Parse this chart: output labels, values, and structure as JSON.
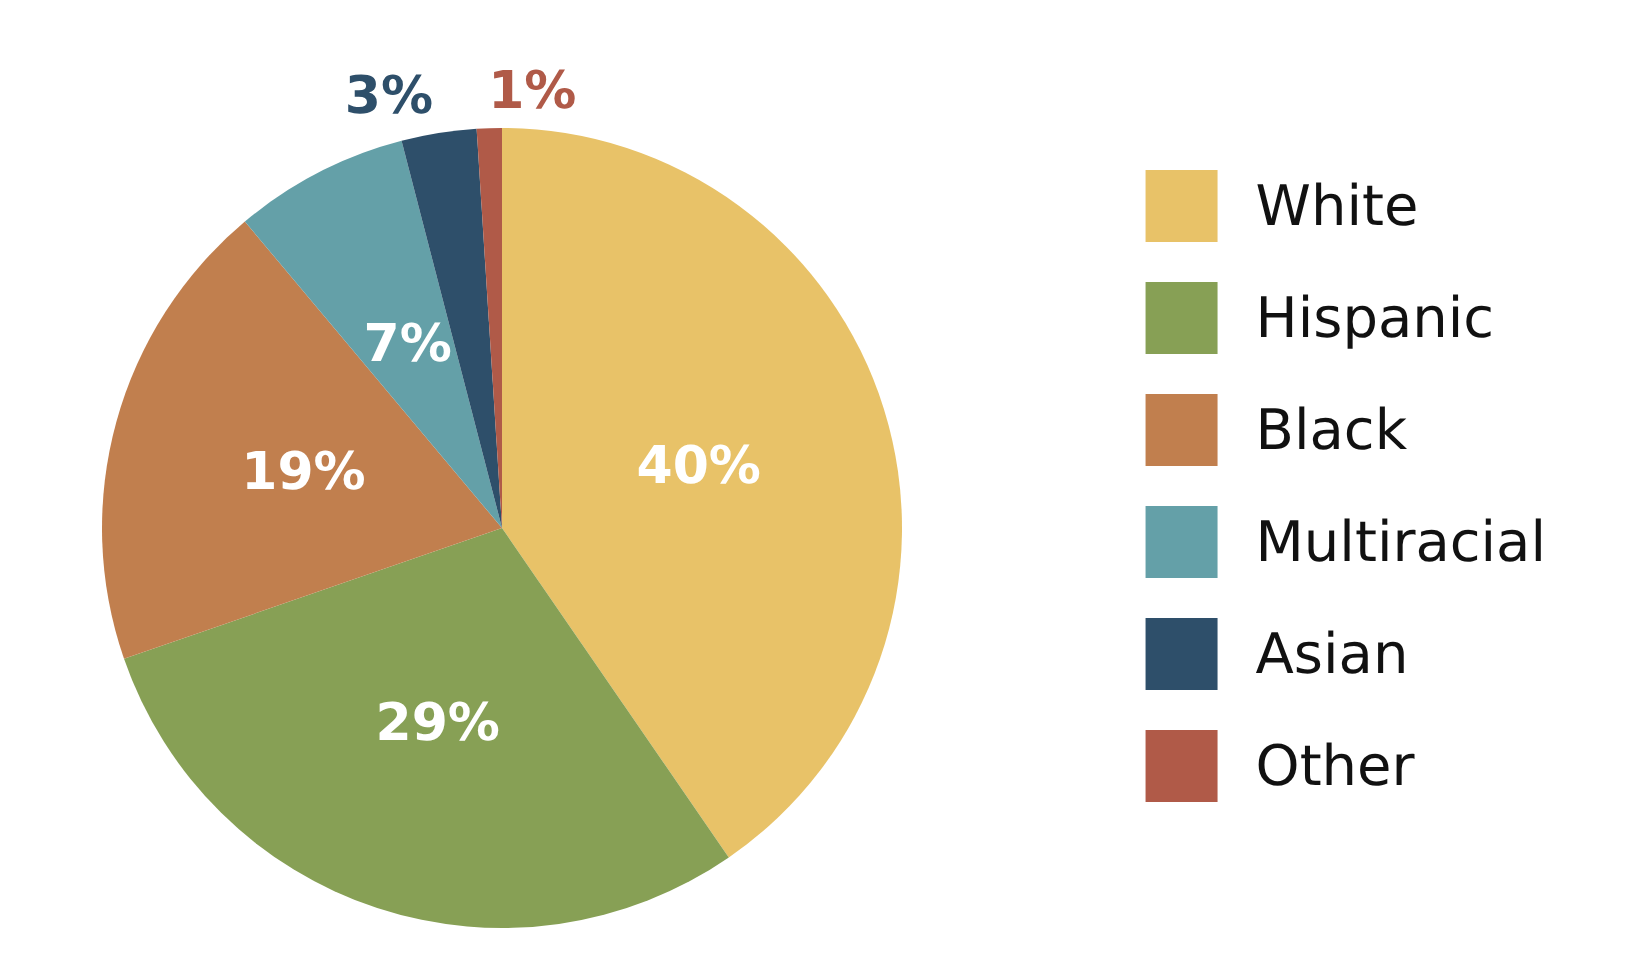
{
  "chart_data": {
    "type": "pie",
    "categories": [
      "White",
      "Hispanic",
      "Black",
      "Multiracial",
      "Asian",
      "Other"
    ],
    "values": [
      40,
      29,
      19,
      7,
      3,
      1
    ],
    "colors": [
      "#e8c268",
      "#87a055",
      "#c17f4e",
      "#64a0a8",
      "#2e4f6a",
      "#b05a48"
    ],
    "value_labels": [
      "40%",
      "29%",
      "19%",
      "7%",
      "3%",
      "1%"
    ],
    "legend": "right"
  }
}
